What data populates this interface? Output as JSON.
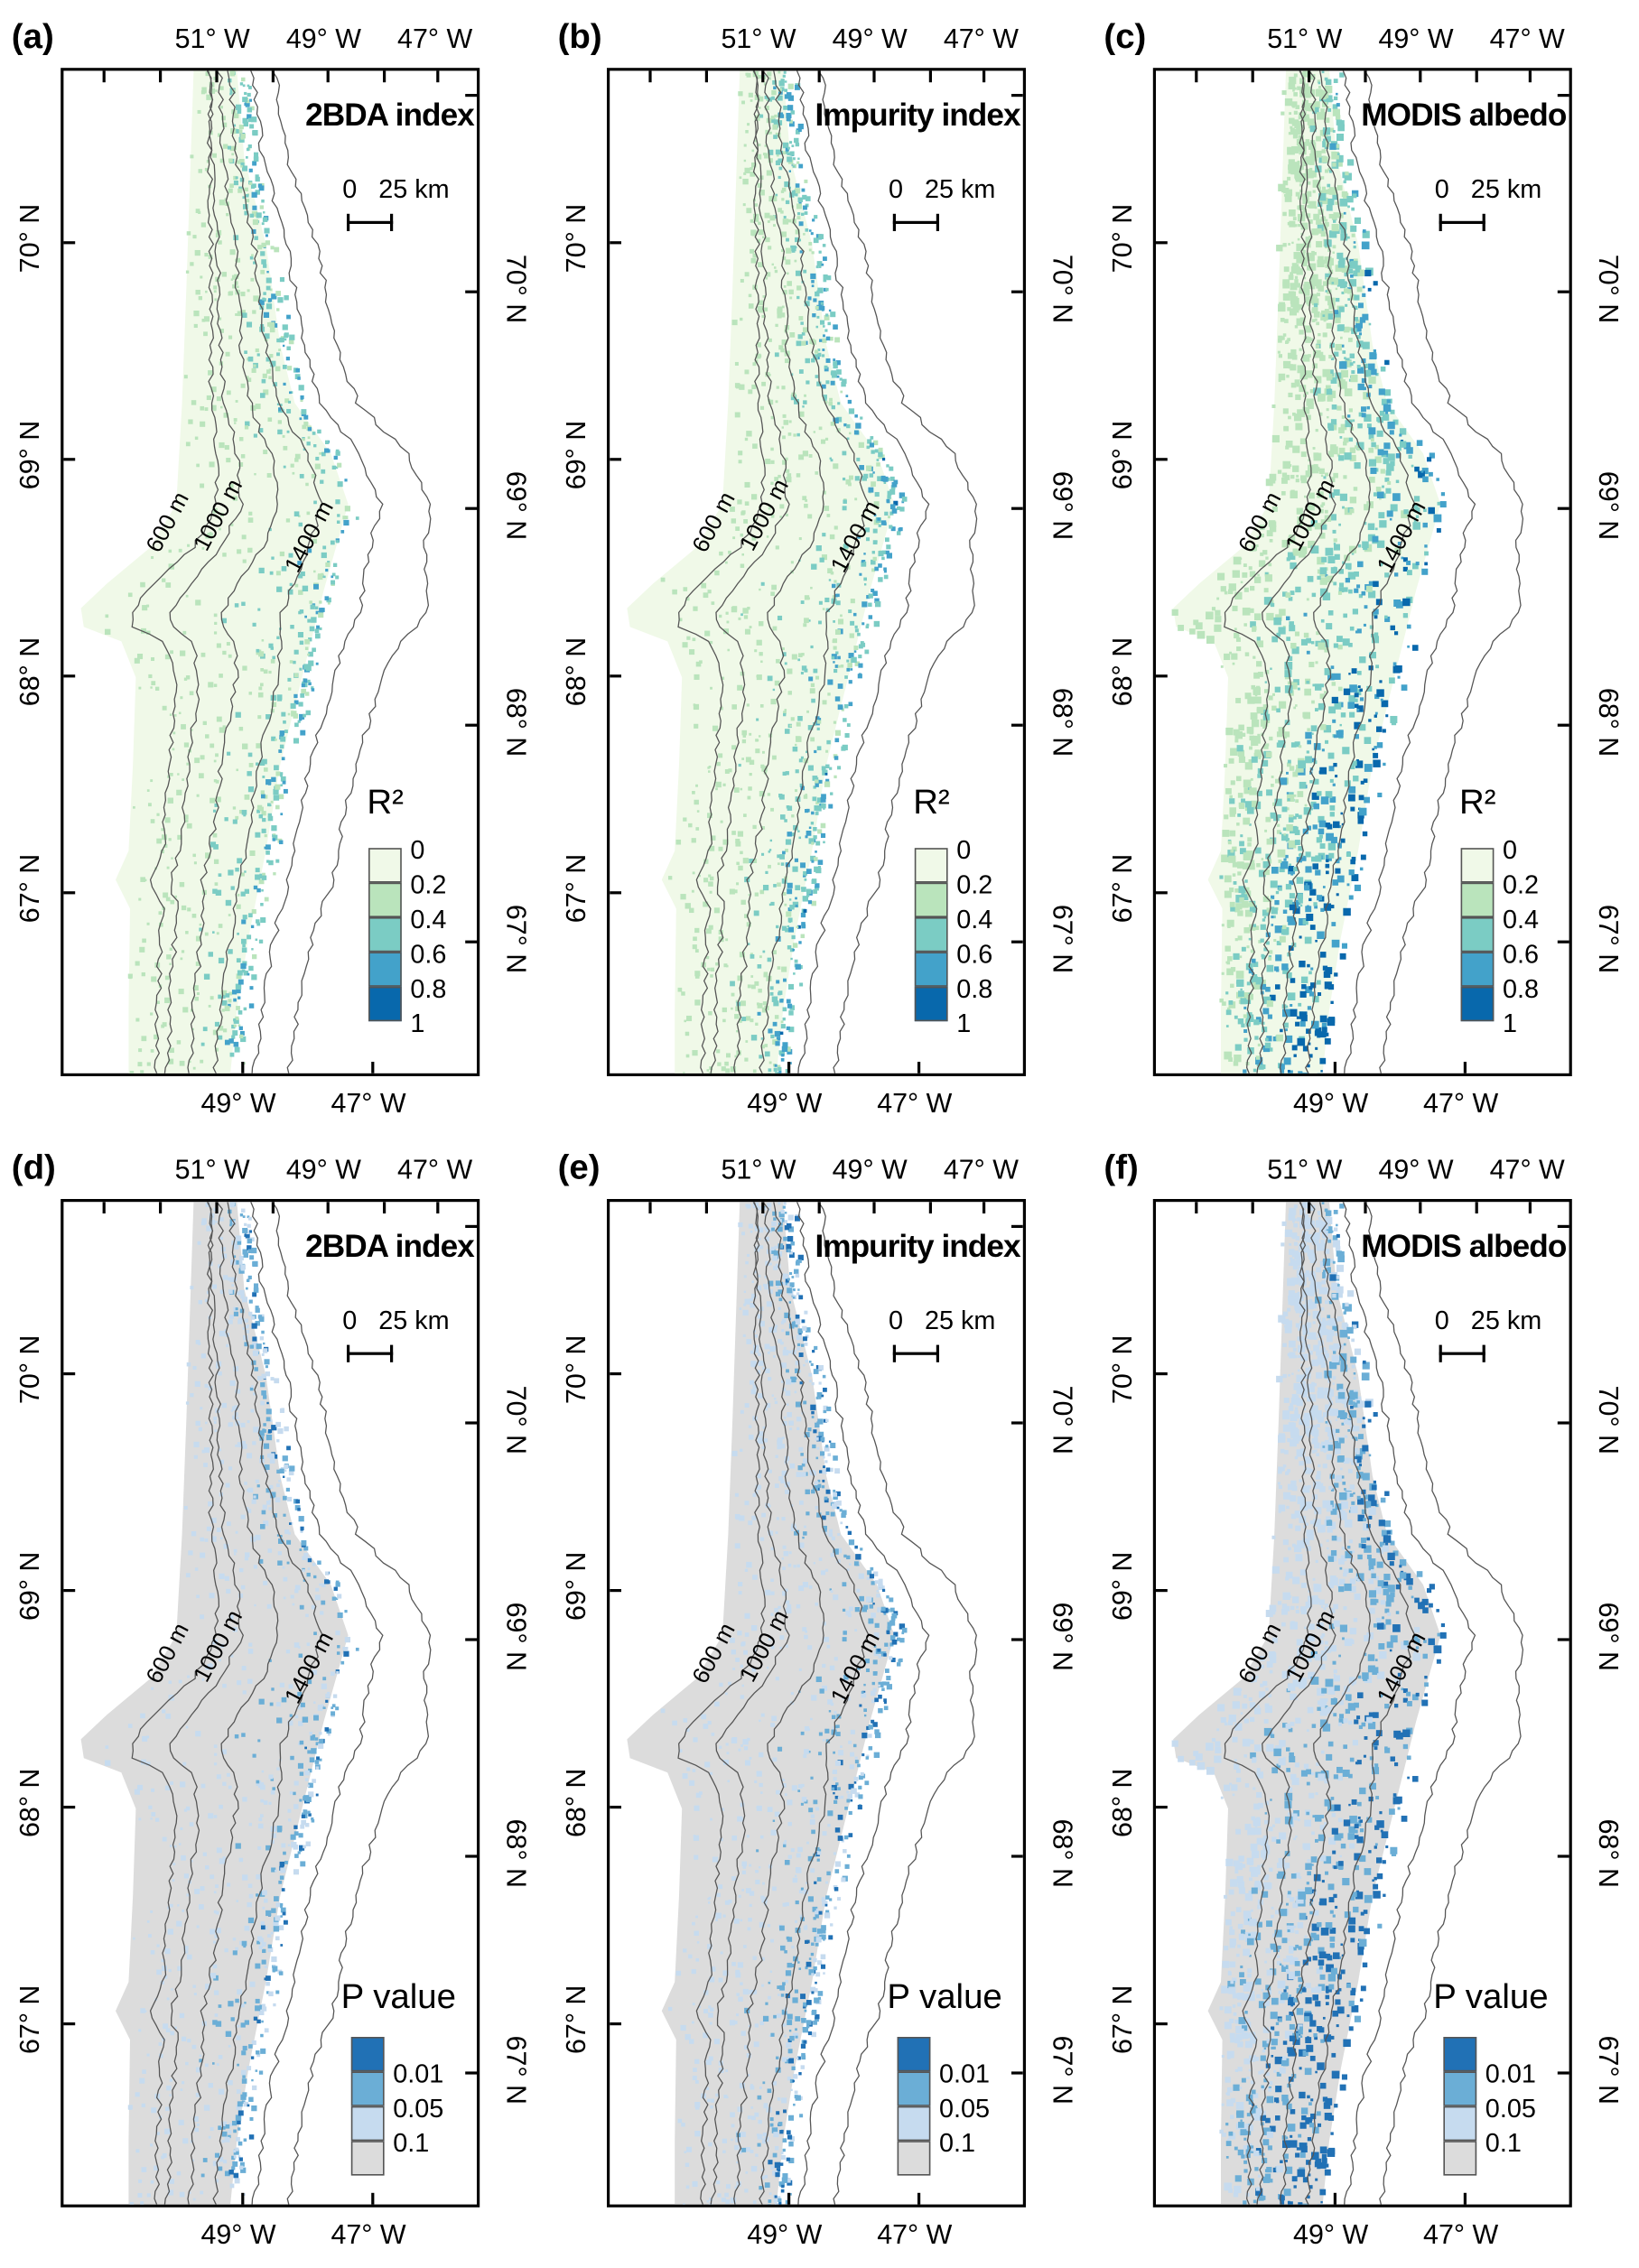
{
  "figure": {
    "top_lon_ticks": [
      "51° W",
      "49° W",
      "47° W"
    ],
    "bottom_lon_ticks": [
      "49° W",
      "47° W"
    ],
    "lat_ticks": [
      "70° N",
      "69° N",
      "68° N",
      "67° N"
    ],
    "scale_bar": {
      "zero": "0",
      "label": "25 km"
    },
    "contours": [
      "600 m",
      "1000 m",
      "1400 m"
    ]
  },
  "legends": {
    "r2": {
      "title": "R²",
      "labels": [
        "0",
        "0.2",
        "0.4",
        "0.6",
        "0.8",
        "1"
      ],
      "colors": [
        "#f0f9e8",
        "#bae4bc",
        "#7bccc4",
        "#43a2ca",
        "#0868ac"
      ]
    },
    "p": {
      "title": "P value",
      "labels": [
        "0.01",
        "0.05",
        "0.1"
      ],
      "colors": [
        "#2171b5",
        "#6baed6",
        "#c6dbef",
        "#dcdcdc"
      ]
    }
  },
  "panels": [
    {
      "label": "(a)",
      "title": "2BDA index",
      "legend": "r2"
    },
    {
      "label": "(b)",
      "title": "Impurity index",
      "legend": "r2"
    },
    {
      "label": "(c)",
      "title": "MODIS albedo",
      "legend": "r2"
    },
    {
      "label": "(d)",
      "title": "2BDA index",
      "legend": "p"
    },
    {
      "label": "(e)",
      "title": "Impurity index",
      "legend": "p"
    },
    {
      "label": "(f)",
      "title": "MODIS albedo",
      "legend": "p"
    }
  ]
}
